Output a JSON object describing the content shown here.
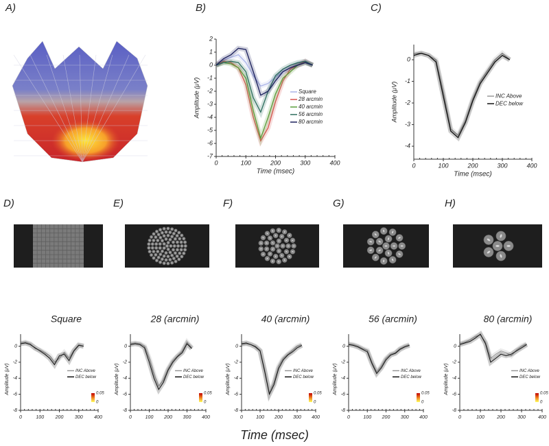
{
  "panel_a": "A)",
  "shared_xlabel": "Time (msec)",
  "chart_data": [
    {
      "type": "line",
      "panel": "B)",
      "xlabel": "Time (msec)",
      "ylabel": "Amplitude (μV)",
      "x": [
        0,
        25,
        50,
        75,
        100,
        125,
        150,
        175,
        200,
        225,
        250,
        275,
        300,
        325
      ],
      "xlim": [
        0,
        400
      ],
      "xticks": [
        0,
        100,
        200,
        300,
        400
      ],
      "ylim": [
        -7,
        2
      ],
      "yticks": [
        -7,
        -6,
        -5,
        -4,
        -3,
        -2,
        -1,
        0,
        1,
        2
      ],
      "legend": "right",
      "series": [
        {
          "name": "Square",
          "color": "#aab4e8",
          "values": [
            0,
            0.4,
            0.6,
            0.8,
            0.2,
            -0.8,
            -1.6,
            -1.4,
            -0.9,
            -0.5,
            -0.2,
            0.1,
            0.3,
            0
          ]
        },
        {
          "name": "28 arcmin",
          "color": "#d9534f",
          "values": [
            0,
            0.3,
            0.2,
            -0.2,
            -1.5,
            -4.0,
            -5.8,
            -4.8,
            -2.8,
            -1.2,
            -0.3,
            0,
            0.3,
            0
          ]
        },
        {
          "name": "40 arcmin",
          "color": "#5a9e3a",
          "values": [
            0,
            0.2,
            0.1,
            -0.2,
            -1.0,
            -3.5,
            -5.6,
            -4.0,
            -2.2,
            -1.0,
            -0.5,
            0,
            0.2,
            0
          ]
        },
        {
          "name": "56 arcmin",
          "color": "#2d6e5e",
          "values": [
            0,
            0.2,
            0.3,
            0.2,
            -0.5,
            -2.5,
            -3.6,
            -2.0,
            -0.8,
            -0.3,
            0,
            0.2,
            0.3,
            0
          ]
        },
        {
          "name": "80 arcmin",
          "color": "#1a1f5c",
          "values": [
            0,
            0.5,
            0.8,
            1.3,
            1.2,
            -0.5,
            -2.3,
            -2.0,
            -1.2,
            -0.5,
            -0.2,
            0,
            0.2,
            0
          ]
        }
      ]
    },
    {
      "type": "line",
      "panel": "C)",
      "xlabel": "Time (msec)",
      "ylabel": "Amplitude (μV)",
      "x": [
        0,
        25,
        50,
        75,
        100,
        125,
        150,
        175,
        200,
        225,
        250,
        275,
        300,
        325
      ],
      "xlim": [
        0,
        400
      ],
      "xticks": [
        0,
        100,
        200,
        300,
        400
      ],
      "ylim": [
        -4.6,
        0.7
      ],
      "yticks": [
        -4,
        -3,
        -2,
        -1,
        0
      ],
      "legend": "right",
      "series": [
        {
          "name": "INC Above",
          "color": "#999999",
          "values": [
            0.3,
            0.3,
            0.2,
            0.0,
            -1.5,
            -3.2,
            -3.5,
            -2.8,
            -1.8,
            -1.0,
            -0.5,
            0,
            0.3,
            0
          ]
        },
        {
          "name": "DEC below",
          "color": "#111111",
          "values": [
            0.2,
            0.3,
            0.2,
            -0.1,
            -1.7,
            -3.3,
            -3.6,
            -2.9,
            -1.9,
            -1.1,
            -0.6,
            -0.1,
            0.2,
            0
          ]
        }
      ]
    },
    {
      "type": "line",
      "panel": "D)",
      "title": "Square",
      "ylabel": "Amplitude (μV)",
      "x": [
        0,
        25,
        50,
        75,
        100,
        125,
        150,
        175,
        200,
        225,
        250,
        275,
        300,
        325
      ],
      "xlim": [
        0,
        400
      ],
      "xticks": [
        0,
        100,
        200,
        300,
        400
      ],
      "ylim": [
        -8,
        1.5
      ],
      "yticks": [
        -8,
        -6,
        -4,
        -2,
        0
      ],
      "legend": "right",
      "colorbar_ticks": [
        0.05,
        0
      ],
      "series": [
        {
          "name": "INC Above",
          "color": "#999999",
          "values": [
            0.4,
            0.5,
            0.3,
            -0.3,
            -0.5,
            -0.8,
            -1.2,
            -2.0,
            -1.5,
            -0.8,
            -1.5,
            -0.5,
            0.2,
            0
          ]
        },
        {
          "name": "DEC below",
          "color": "#111111",
          "values": [
            0.3,
            0.4,
            0.2,
            -0.2,
            -0.6,
            -1.0,
            -1.5,
            -2.3,
            -1.2,
            -1.0,
            -1.8,
            -0.6,
            0.1,
            0
          ]
        }
      ]
    },
    {
      "type": "line",
      "panel": "E)",
      "title": "28 (arcmin)",
      "ylabel": "Amplitude (μV)",
      "x": [
        0,
        25,
        50,
        75,
        100,
        125,
        150,
        175,
        200,
        225,
        250,
        275,
        300,
        325
      ],
      "xlim": [
        0,
        400
      ],
      "xticks": [
        0,
        100,
        200,
        300,
        400
      ],
      "ylim": [
        -8,
        1.5
      ],
      "yticks": [
        -8,
        -6,
        -4,
        -2,
        0
      ],
      "legend": "right",
      "colorbar_ticks": [
        0.05,
        0
      ],
      "series": [
        {
          "name": "INC Above",
          "color": "#999999",
          "values": [
            0.3,
            0.4,
            0.3,
            0,
            -1.5,
            -3.5,
            -5,
            -4.2,
            -2.8,
            -1.8,
            -1.2,
            -0.6,
            0.5,
            -0.2
          ]
        },
        {
          "name": "DEC below",
          "color": "#111111",
          "values": [
            0.2,
            0.3,
            0.2,
            -0.2,
            -2,
            -4,
            -5.4,
            -4.5,
            -3,
            -2,
            -1.3,
            -0.8,
            0.3,
            -0.3
          ]
        }
      ]
    },
    {
      "type": "line",
      "panel": "F)",
      "title": "40 (arcmin)",
      "ylabel": "Amplitude (μV)",
      "x": [
        0,
        25,
        50,
        75,
        100,
        125,
        150,
        175,
        200,
        225,
        250,
        275,
        300,
        325
      ],
      "xlim": [
        0,
        400
      ],
      "xticks": [
        0,
        100,
        200,
        300,
        400
      ],
      "ylim": [
        -8,
        1.5
      ],
      "yticks": [
        -8,
        -6,
        -4,
        -2,
        0
      ],
      "legend": "right",
      "colorbar_ticks": [
        0.05,
        0
      ],
      "series": [
        {
          "name": "INC Above",
          "color": "#999999",
          "values": [
            0.2,
            0.3,
            0.2,
            0,
            -0.5,
            -3,
            -5.8,
            -4.5,
            -2.5,
            -1.5,
            -1,
            -0.5,
            0,
            0.2
          ]
        },
        {
          "name": "DEC below",
          "color": "#111111",
          "values": [
            0.3,
            0.4,
            0.2,
            -0.1,
            -0.6,
            -3.2,
            -6,
            -4.8,
            -2.8,
            -1.7,
            -1.1,
            -0.7,
            -0.2,
            0.1
          ]
        }
      ]
    },
    {
      "type": "line",
      "panel": "G)",
      "title": "56 (arcmin)",
      "ylabel": "Amplitude (μV)",
      "x": [
        0,
        25,
        50,
        75,
        100,
        125,
        150,
        175,
        200,
        225,
        250,
        275,
        300,
        325
      ],
      "xlim": [
        0,
        400
      ],
      "xticks": [
        0,
        100,
        200,
        300,
        400
      ],
      "ylim": [
        -8,
        1.5
      ],
      "yticks": [
        -8,
        -6,
        -4,
        -2,
        0
      ],
      "legend": "right",
      "colorbar_ticks": [
        0.05,
        0
      ],
      "series": [
        {
          "name": "INC Above",
          "color": "#999999",
          "values": [
            0.3,
            0.2,
            0,
            -0.3,
            -0.5,
            -2,
            -3.2,
            -2.5,
            -1.5,
            -1,
            -0.8,
            -0.3,
            0,
            0.2
          ]
        },
        {
          "name": "DEC below",
          "color": "#111111",
          "values": [
            0.2,
            0.1,
            -0.1,
            -0.4,
            -0.7,
            -2.2,
            -3.4,
            -2.7,
            -1.7,
            -1.1,
            -0.9,
            -0.4,
            -0.1,
            0.1
          ]
        }
      ]
    },
    {
      "type": "line",
      "panel": "H)",
      "title": "80 (arcmin)",
      "ylabel": "Amplitude (μV)",
      "x": [
        0,
        25,
        50,
        75,
        100,
        125,
        150,
        175,
        200,
        225,
        250,
        275,
        300,
        325
      ],
      "xlim": [
        0,
        400
      ],
      "xticks": [
        0,
        100,
        200,
        300,
        400
      ],
      "ylim": [
        -8,
        1.5
      ],
      "yticks": [
        -8,
        -6,
        -4,
        -2,
        0
      ],
      "legend": "right",
      "colorbar_ticks": [
        0.05,
        0
      ],
      "series": [
        {
          "name": "INC Above",
          "color": "#999999",
          "values": [
            0.3,
            0.5,
            0.8,
            1.2,
            1.4,
            0.5,
            -1.5,
            -1.0,
            -0.6,
            -0.8,
            -1.2,
            -0.5,
            0,
            0.3
          ]
        },
        {
          "name": "DEC below",
          "color": "#111111",
          "values": [
            0.2,
            0.4,
            0.6,
            1.0,
            1.5,
            0.3,
            -2.0,
            -1.5,
            -1.0,
            -1.2,
            -1.0,
            -0.6,
            -0.2,
            0.2
          ]
        }
      ]
    }
  ]
}
